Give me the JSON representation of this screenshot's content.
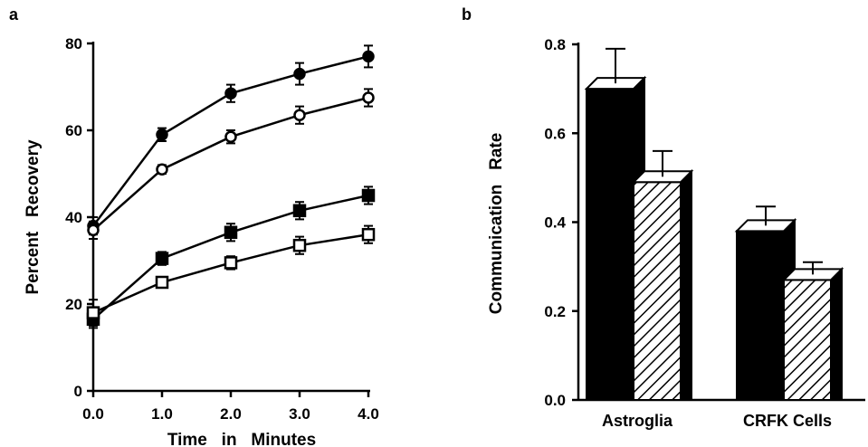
{
  "chart_data": [
    {
      "panel_label": "a",
      "type": "line",
      "title": "",
      "xlabel": "Time   in   Minutes",
      "ylabel": "Percent   Recovery",
      "x": [
        0.0,
        1.0,
        2.0,
        3.0,
        4.0
      ],
      "xlim": [
        0,
        4
      ],
      "ylim": [
        0,
        80
      ],
      "xticks": [
        "0.0",
        "1.0",
        "2.0",
        "3.0",
        "4.0"
      ],
      "yticks": [
        "0",
        "20",
        "40",
        "60",
        "80"
      ],
      "grid": false,
      "series": [
        {
          "marker": "filled-circle",
          "values": [
            38,
            59,
            68.5,
            73,
            77
          ],
          "errors": [
            2,
            1.5,
            2,
            2.5,
            2.5
          ]
        },
        {
          "marker": "open-circle",
          "values": [
            37,
            51,
            58.5,
            63.5,
            67.5
          ],
          "errors": [
            2,
            1,
            1.5,
            2,
            2
          ]
        },
        {
          "marker": "filled-square",
          "values": [
            16.5,
            30.5,
            36.5,
            41.5,
            45
          ],
          "errors": [
            2,
            1.5,
            2,
            2,
            2
          ]
        },
        {
          "marker": "open-square",
          "values": [
            18,
            25,
            29.5,
            33.5,
            36
          ],
          "errors": [
            3,
            1,
            1.5,
            2,
            2
          ]
        }
      ]
    },
    {
      "panel_label": "b",
      "type": "bar",
      "title": "",
      "xlabel": "",
      "ylabel": "Communication   Rate",
      "categories": [
        "Astroglia",
        "CRFK   Cells"
      ],
      "ylim": [
        0,
        0.8
      ],
      "yticks": [
        "0.0",
        "0.2",
        "0.4",
        "0.6",
        "0.8"
      ],
      "grid": false,
      "series": [
        {
          "fill": "solid-black",
          "values": [
            0.7,
            0.38
          ],
          "errors": [
            0.09,
            0.055
          ]
        },
        {
          "fill": "hatched",
          "values": [
            0.49,
            0.27
          ],
          "errors": [
            0.07,
            0.04
          ]
        }
      ]
    }
  ]
}
